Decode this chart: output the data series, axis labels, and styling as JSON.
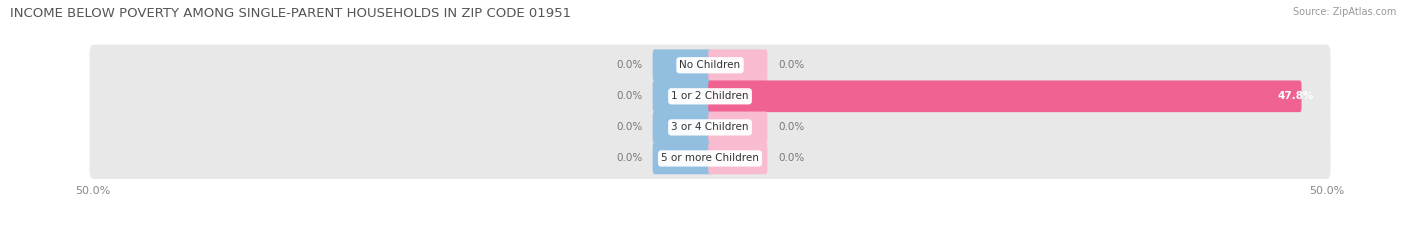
{
  "title": "INCOME BELOW POVERTY AMONG SINGLE-PARENT HOUSEHOLDS IN ZIP CODE 01951",
  "source": "Source: ZipAtlas.com",
  "categories": [
    "No Children",
    "1 or 2 Children",
    "3 or 4 Children",
    "5 or more Children"
  ],
  "single_father": [
    0.0,
    0.0,
    0.0,
    0.0
  ],
  "single_mother": [
    0.0,
    47.8,
    0.0,
    0.0
  ],
  "axis_min": -50.0,
  "axis_max": 50.0,
  "father_color": "#92bfdf",
  "mother_color": "#f06292",
  "mother_color_small": "#f8bbd0",
  "bar_bg_color": "#e8e8e8",
  "title_fontsize": 9.5,
  "source_fontsize": 7,
  "legend_fontsize": 8,
  "axis_label_fontsize": 8,
  "value_fontsize": 7.5,
  "cat_fontsize": 7.5
}
